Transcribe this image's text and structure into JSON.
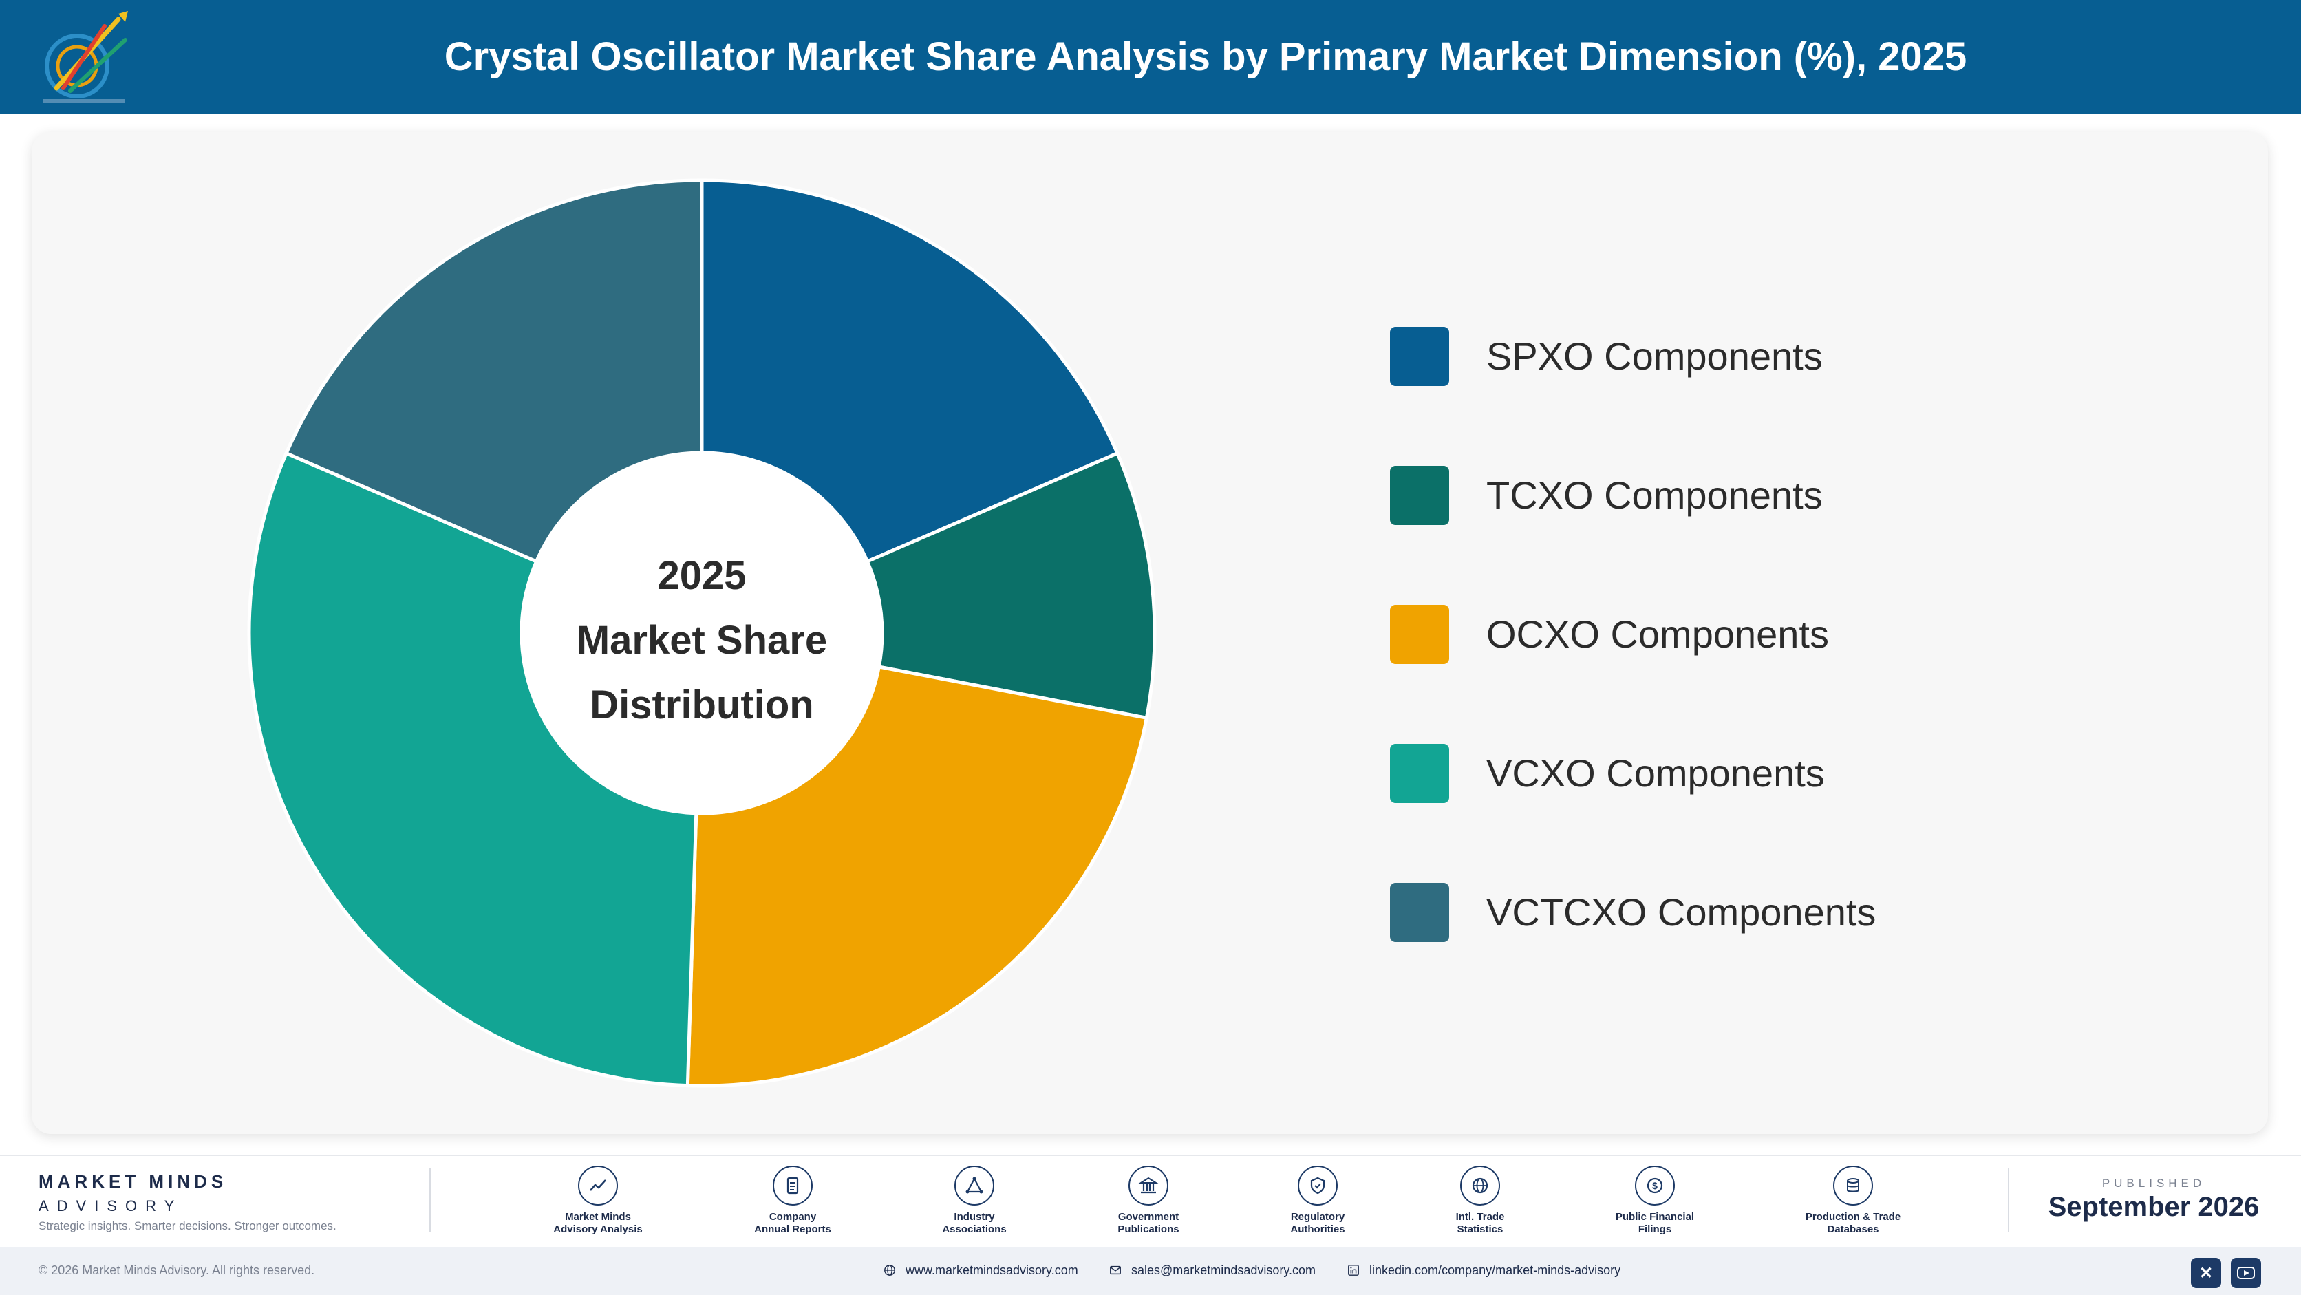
{
  "header": {
    "title": "Crystal Oscillator Market Share Analysis by Primary Market Dimension (%), 2025",
    "logo_icon": "rocket-target-logo"
  },
  "chart_data": {
    "type": "pie",
    "variant": "donut",
    "title": "Crystal Oscillator Market Share Analysis by Primary Market Dimension (%), 2025",
    "center_label": [
      "2025",
      "Market Share",
      "Distribution"
    ],
    "categories": [
      "SPXO Components",
      "TCXO Components",
      "OCXO Components",
      "VCXO Components",
      "VCTCXO Components"
    ],
    "values": [
      18.5,
      9.5,
      22.5,
      31.0,
      18.5
    ],
    "colors": [
      "#075e92",
      "#0b7068",
      "#f0a300",
      "#12a594",
      "#2f6c80"
    ],
    "legend_position": "right"
  },
  "footer": {
    "brand_name": "MARKET MINDS",
    "brand_sub": "ADVISORY",
    "brand_tagline": "Strategic insights. Smarter decisions. Stronger outcomes.",
    "sources": [
      {
        "line1": "Market Minds",
        "line2": "Advisory Analysis",
        "icon": "trend-chart-icon"
      },
      {
        "line1": "Company",
        "line2": "Annual Reports",
        "icon": "document-icon"
      },
      {
        "line1": "Industry",
        "line2": "Associations",
        "icon": "network-icon"
      },
      {
        "line1": "Government",
        "line2": "Publications",
        "icon": "building-icon"
      },
      {
        "line1": "Regulatory",
        "line2": "Authorities",
        "icon": "shield-icon"
      },
      {
        "line1": "Intl. Trade",
        "line2": "Statistics",
        "icon": "globe-icon"
      },
      {
        "line1": "Public Financial",
        "line2": "Filings",
        "icon": "currency-icon"
      },
      {
        "line1": "Production & Trade",
        "line2": "Databases",
        "icon": "database-icon"
      }
    ],
    "published_label": "PUBLISHED",
    "published_date": "September 2026",
    "copyright": "© 2026 Market Minds Advisory. All rights reserved.",
    "website": "www.marketmindsadvisory.com",
    "email": "sales@marketmindsadvisory.com",
    "linkedin": "linkedin.com/company/market-minds-advisory",
    "social_icons": [
      "x-icon",
      "youtube-icon"
    ]
  }
}
